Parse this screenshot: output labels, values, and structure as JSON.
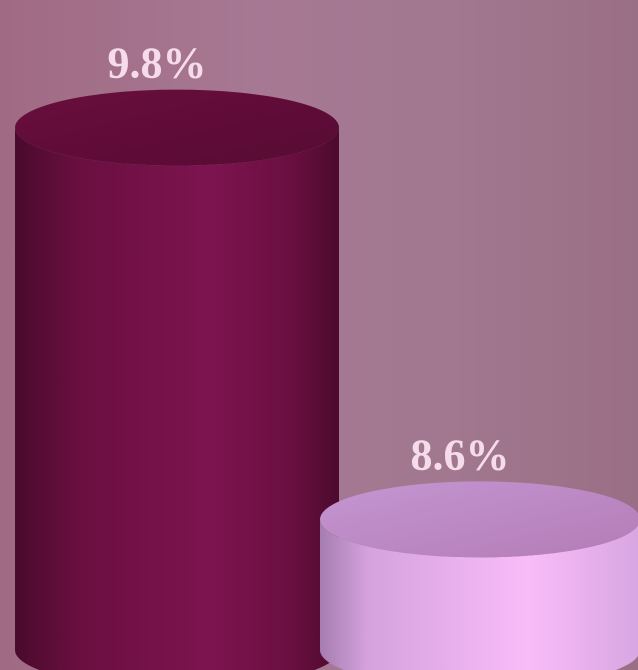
{
  "chart_data": {
    "type": "bar",
    "style": "3d-cylinder",
    "categories": [
      "",
      ""
    ],
    "values": [
      9.8,
      8.6
    ],
    "data_labels": [
      "9.8%",
      "8.6%"
    ],
    "ylim": [
      8.2,
      9.9
    ],
    "grid": false,
    "legend": "none",
    "colors": {
      "background": "#a27690",
      "series": [
        "#7a1048",
        "#f2b4f4"
      ]
    }
  }
}
